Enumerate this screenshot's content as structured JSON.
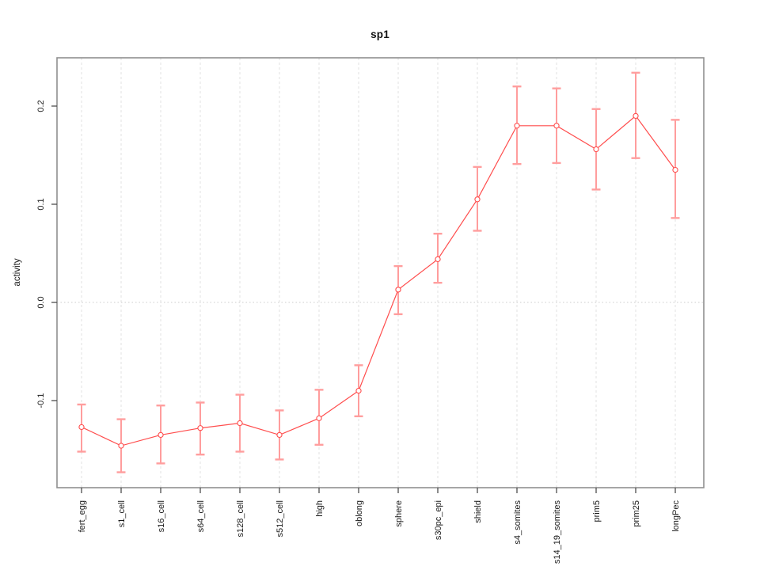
{
  "window": {
    "background": "#ffffff"
  },
  "chart_data": {
    "type": "line",
    "title": "sp1",
    "ylabel": "activity",
    "categories": [
      "fert_egg",
      "s1_cell",
      "s16_cell",
      "s64_cell",
      "s128_cell",
      "s512_cell",
      "high",
      "oblong",
      "sphere",
      "s30pc_epi",
      "shield",
      "s4_somites",
      "s14_19_somites",
      "prim5",
      "prim25",
      "longPec"
    ],
    "series": [
      {
        "name": "sp1",
        "values": [
          -0.127,
          -0.146,
          -0.135,
          -0.128,
          -0.123,
          -0.135,
          -0.118,
          -0.09,
          0.013,
          0.044,
          0.105,
          0.18,
          0.18,
          0.156,
          0.19,
          0.135
        ],
        "ci_upper": [
          -0.104,
          -0.119,
          -0.105,
          -0.102,
          -0.094,
          -0.11,
          -0.089,
          -0.064,
          0.037,
          0.07,
          0.138,
          0.22,
          0.218,
          0.197,
          0.234,
          0.186
        ],
        "ci_lower": [
          -0.152,
          -0.173,
          -0.164,
          -0.155,
          -0.152,
          -0.16,
          -0.145,
          -0.116,
          -0.012,
          0.02,
          0.073,
          0.141,
          0.142,
          0.115,
          0.147,
          0.086
        ]
      }
    ],
    "ytick_values": [
      -0.1,
      0.0,
      0.1,
      0.2
    ],
    "ytick_labels": [
      "-0.1",
      "0.0",
      "0.1",
      "0.2"
    ],
    "ylim": [
      -0.189,
      0.249
    ],
    "legend_position": "none",
    "marker": "open-circle",
    "grid": {
      "vertical": "dashed-per-category",
      "horizontal": "dotted-zero-line-only"
    },
    "colors": {
      "series": "#ff4d4d",
      "error_cap": "#ff9e9e",
      "grid_vertical": "#e2e2e2",
      "zero_line": "#cccccc",
      "frame": "#8f8f8f",
      "tick": "#4d4d4d",
      "text": "#1a1a1a"
    }
  }
}
